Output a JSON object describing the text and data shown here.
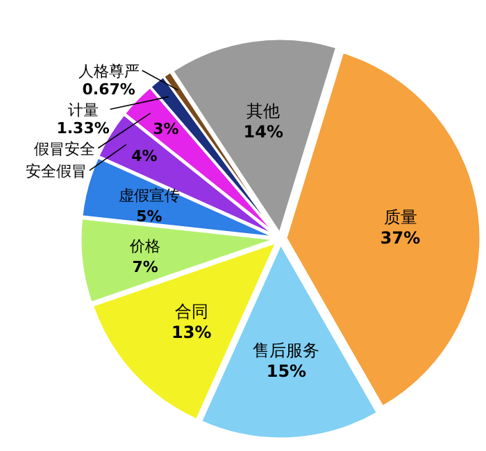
{
  "chart_data": {
    "type": "pie",
    "categories": [
      "质量",
      "售后服务",
      "合同",
      "价格",
      "虚假宣传",
      "安全假冒",
      "假冒安全",
      "计量",
      "人格尊严",
      "其他"
    ],
    "values": [
      37,
      15,
      13,
      7,
      5,
      4,
      3,
      1.33,
      0.67,
      14
    ],
    "value_labels": [
      "37%",
      "15%",
      "13%",
      "7%",
      "5%",
      "4%",
      "3%",
      "1.33%",
      "0.67%",
      "14%"
    ],
    "colors": [
      "#f6a23e",
      "#82d0f4",
      "#f2f224",
      "#b4f06e",
      "#2e7fe6",
      "#9434e2",
      "#e424ea",
      "#1b2f7e",
      "#7a4a1c",
      "#9a9a9a"
    ]
  }
}
